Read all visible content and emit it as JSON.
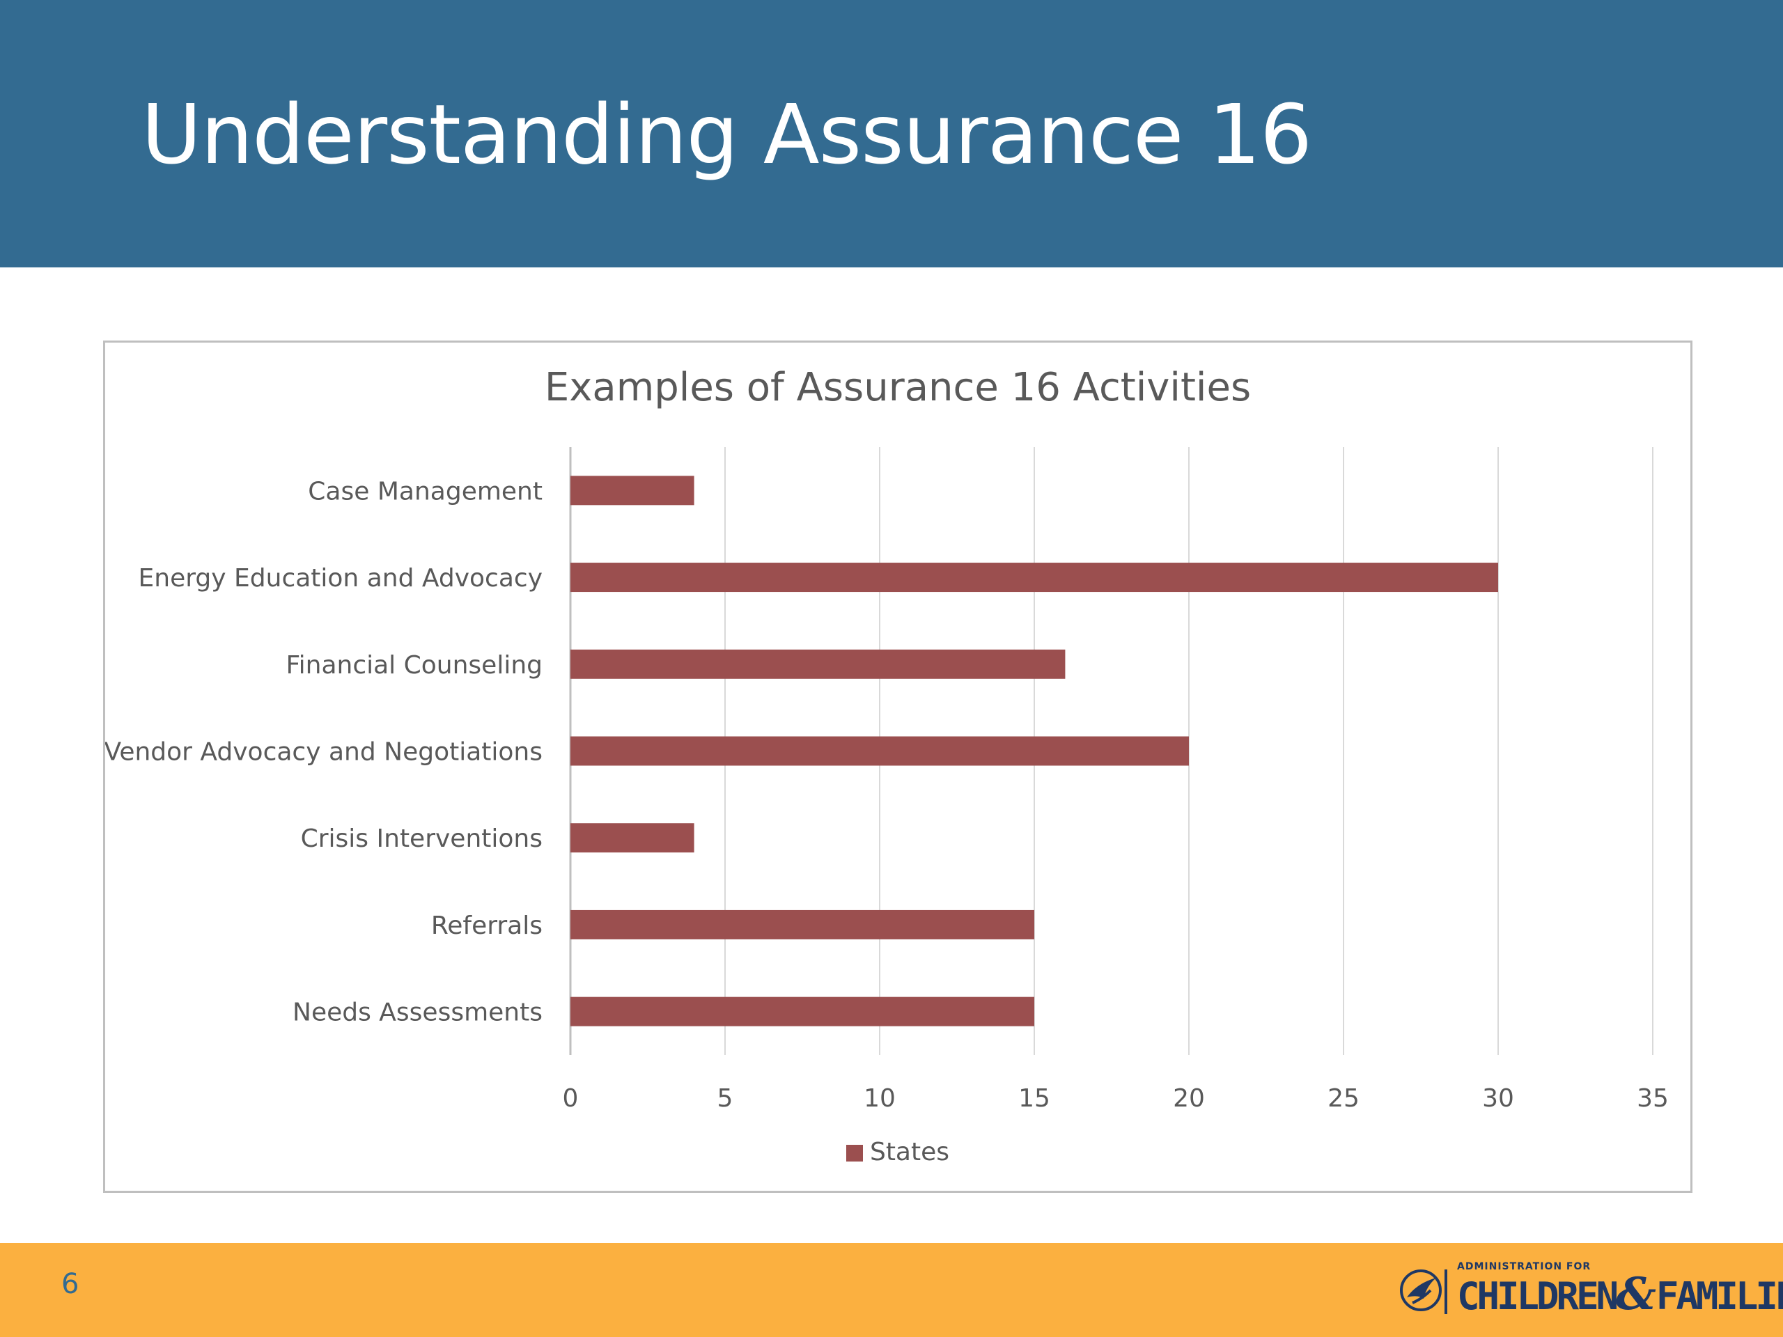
{
  "slide": {
    "title": "Understanding Assurance 16",
    "page_number": "6"
  },
  "logo": {
    "small_text": "ADMINISTRATION FOR",
    "main_text_left": "CHILDREN",
    "main_text_amp": "&",
    "main_text_right": "FAMILIES"
  },
  "colors": {
    "header": "#336b91",
    "footer": "#fbb040",
    "bar": "#9b4f4f",
    "grid": "#d9d9d9"
  },
  "chart_data": {
    "type": "bar",
    "orientation": "horizontal",
    "title": "Examples of Assurance 16 Activities",
    "categories": [
      "Case Management",
      "Energy Education and Advocacy",
      "Financial Counseling",
      "Vendor Advocacy and Negotiations",
      "Crisis Interventions",
      "Referrals",
      "Needs Assessments"
    ],
    "series": [
      {
        "name": "States",
        "values": [
          4,
          30,
          16,
          20,
          4,
          15,
          15
        ]
      }
    ],
    "xlim": [
      0,
      35
    ],
    "xticks": [
      "0",
      "5",
      "10",
      "15",
      "20",
      "25",
      "30",
      "35"
    ],
    "grid": "vertical",
    "legend": "bottom"
  }
}
